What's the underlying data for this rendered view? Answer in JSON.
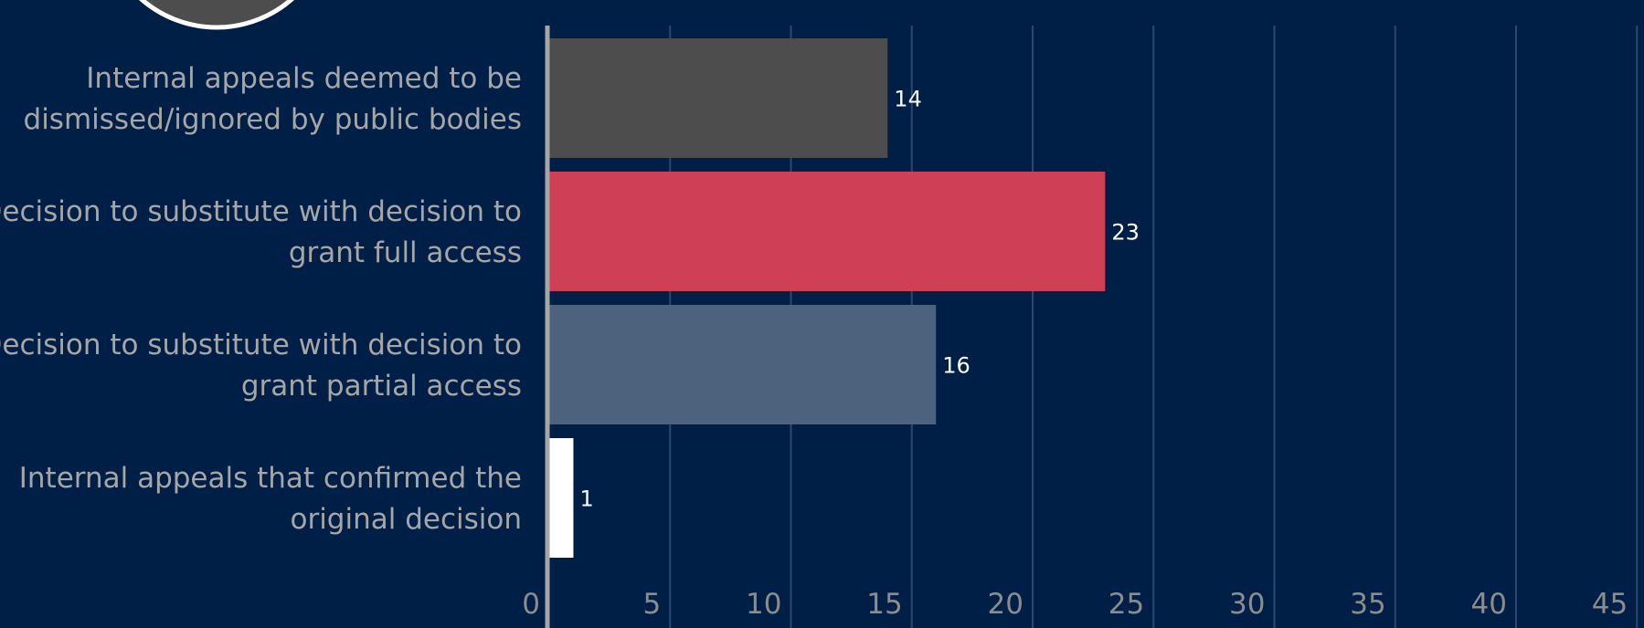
{
  "chart_data": {
    "type": "bar",
    "orientation": "horizontal",
    "categories": [
      [
        "Internal appeals deemed to be",
        "dismissed/ignored by public bodies"
      ],
      [
        "Decision to substitute with decision to",
        "grant full access"
      ],
      [
        "Decision to substitute with decision to",
        "grant partial access"
      ],
      [
        "Internal appeals that confirmed the",
        "original decision"
      ]
    ],
    "values": [
      14,
      23,
      16,
      1
    ],
    "colors": [
      "#4d4d4d",
      "#cf3f56",
      "#4d627d",
      "#ffffff"
    ],
    "xlim": [
      0,
      45
    ],
    "xticks": [
      0,
      5,
      10,
      15,
      20,
      25,
      30,
      35,
      40,
      45
    ],
    "grid": true,
    "legend": "none",
    "title": "",
    "xlabel": "",
    "ylabel": ""
  }
}
